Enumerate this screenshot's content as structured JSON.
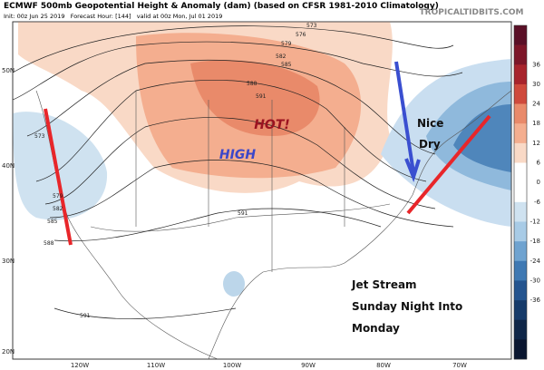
{
  "header": {
    "title": "ECMWF 500mb Geopotential Height & Anomaly (dam) (based on CFSR 1981-2010 Climatology)",
    "subtitle": "Init: 00z Jun 25 2019   Forecast Hour: [144]   valid at 00z Mon, Jul 01 2019",
    "credit": "TROPICALTIDBITS.COM"
  },
  "map": {
    "lat_labels": [
      "50N",
      "40N",
      "30N",
      "20N"
    ],
    "lon_labels": [
      "120W",
      "110W",
      "100W",
      "90W",
      "80W",
      "70W"
    ],
    "contour_labels": [
      573,
      579,
      582,
      585,
      588,
      591,
      591,
      573,
      576,
      579,
      582,
      585,
      588,
      591
    ],
    "annotations": {
      "hot": "HOT!",
      "high": "HIGH",
      "nice": "Nice",
      "dry": "Dry",
      "jet": [
        "Jet Stream",
        "Sunday Night Into",
        "Monday"
      ]
    }
  },
  "colorbar": {
    "labels": [
      36,
      30,
      24,
      18,
      12,
      6,
      0,
      -6,
      -12,
      -18,
      -24,
      -30,
      -36
    ]
  }
}
